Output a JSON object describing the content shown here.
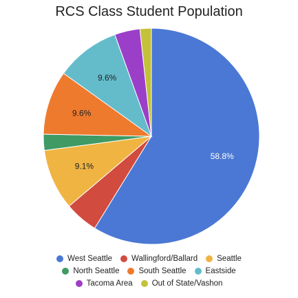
{
  "chart_data": {
    "type": "pie",
    "title": "RCS Class Student Population",
    "start": "top",
    "direction": "clockwise",
    "slices": [
      {
        "name": "West Seattle",
        "value": 58.8,
        "color": "#4a78d4",
        "label": "58.8%",
        "label_color": "#ffffff"
      },
      {
        "name": "Wallingford/Ballard",
        "value": 5.0,
        "color": "#d14b3f",
        "label": "",
        "label_color": "#222222"
      },
      {
        "name": "Seattle",
        "value": 9.1,
        "color": "#f0b443",
        "label": "9.1%",
        "label_color": "#222222"
      },
      {
        "name": "North Seattle",
        "value": 2.4,
        "color": "#3f9a64",
        "label": "",
        "label_color": "#222222"
      },
      {
        "name": "South Seattle",
        "value": 9.6,
        "color": "#ee7a2e",
        "label": "9.6%",
        "label_color": "#222222"
      },
      {
        "name": "Eastside",
        "value": 9.6,
        "color": "#64bccb",
        "label": "9.6%",
        "label_color": "#222222"
      },
      {
        "name": "Tacoma Area",
        "value": 3.8,
        "color": "#9b3fc8",
        "label": "",
        "label_color": "#222222"
      },
      {
        "name": "Out of State/Vashon",
        "value": 1.7,
        "color": "#c3c23a",
        "label": "",
        "label_color": "#222222"
      }
    ],
    "legend": {
      "position": "bottom",
      "rows": [
        [
          0,
          1,
          2
        ],
        [
          3,
          4,
          5
        ],
        [
          6,
          7
        ]
      ]
    }
  }
}
